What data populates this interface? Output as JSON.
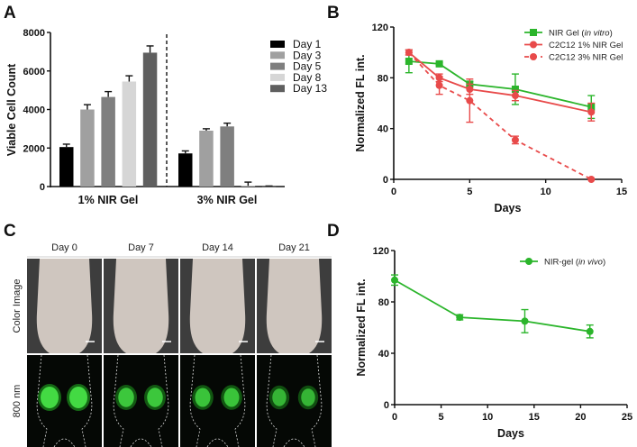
{
  "panel_labels": {
    "a": "A",
    "b": "B",
    "c": "C",
    "d": "D"
  },
  "colors": {
    "green": "#2bb52b",
    "red": "#e84a4a",
    "bars": [
      "#000000",
      "#a0a0a0",
      "#7f7f7f",
      "#d6d6d6",
      "#5f5f5f"
    ]
  },
  "chart_data": [
    {
      "id": "A",
      "type": "bar",
      "ylabel": "Viable Cell Count",
      "xlabel": "",
      "ylim": [
        0,
        8000
      ],
      "yticks": [
        "0",
        "2000",
        "4000",
        "6000",
        "8000"
      ],
      "groups": [
        "1% NIR Gel",
        "3% NIR Gel"
      ],
      "legend_placement": "right",
      "series": [
        {
          "name": "Day 1",
          "values": [
            2050,
            1720
          ],
          "errors": [
            150,
            130
          ]
        },
        {
          "name": "Day 3",
          "values": [
            4000,
            2900
          ],
          "errors": [
            250,
            100
          ]
        },
        {
          "name": "Day 5",
          "values": [
            4650,
            3120
          ],
          "errors": [
            280,
            170
          ]
        },
        {
          "name": "Day 8",
          "values": [
            5450,
            30
          ],
          "errors": [
            300,
            200
          ]
        },
        {
          "name": "Day 13",
          "values": [
            6950,
            10
          ],
          "errors": [
            350,
            20
          ]
        }
      ]
    },
    {
      "id": "B",
      "type": "line",
      "xlabel": "Days",
      "ylabel": "Normalized FL int.",
      "xlim": [
        0,
        15
      ],
      "ylim": [
        0,
        120
      ],
      "xticks": [
        "0",
        "5",
        "10",
        "15"
      ],
      "yticks": [
        "0",
        "40",
        "80",
        "120"
      ],
      "legend_placement": "top-right",
      "series": [
        {
          "name": "NIR Gel (",
          "name_italic": "in vitro",
          "name_end": ")",
          "marker": "square",
          "style": "solid",
          "color": "#2bb52b",
          "x": [
            1,
            3,
            5,
            8,
            13
          ],
          "y": [
            93,
            91,
            75,
            71,
            57
          ],
          "err": [
            9,
            1,
            2,
            12,
            9
          ]
        },
        {
          "name": "C2C12 1% NIR Gel",
          "marker": "circle",
          "style": "solid",
          "color": "#e84a4a",
          "x": [
            1,
            3,
            5,
            8,
            13
          ],
          "y": [
            100,
            80,
            71,
            66,
            53
          ],
          "err": [
            2,
            3,
            4,
            4,
            7
          ]
        },
        {
          "name": "C2C12 3% NIR Gel",
          "marker": "circle",
          "style": "dashed",
          "color": "#e84a4a",
          "x": [
            1,
            3,
            5,
            8,
            13
          ],
          "y": [
            100,
            74,
            62,
            31,
            0
          ],
          "err": [
            2,
            7,
            17,
            3,
            0
          ]
        }
      ]
    },
    {
      "id": "D",
      "type": "line",
      "xlabel": "Days",
      "ylabel": "Normalized FL int.",
      "xlim": [
        0,
        25
      ],
      "ylim": [
        0,
        120
      ],
      "xticks": [
        "0",
        "5",
        "10",
        "15",
        "20",
        "25"
      ],
      "yticks": [
        "0",
        "40",
        "80",
        "120"
      ],
      "legend_placement": "top-right",
      "series": [
        {
          "name": "NIR-gel (",
          "name_italic": "in vivo",
          "name_end": ")",
          "marker": "circle",
          "style": "solid",
          "color": "#2bb52b",
          "x": [
            0,
            7,
            14,
            21
          ],
          "y": [
            97,
            68,
            65,
            57
          ],
          "err": [
            4,
            2,
            9,
            5
          ]
        }
      ]
    }
  ],
  "panel_c": {
    "columns": [
      "Day 0",
      "Day 7",
      "Day 14",
      "Day 21"
    ],
    "rows": [
      "Color Image",
      "800 nm"
    ],
    "fluorescence_intensity": [
      1.0,
      0.75,
      0.7,
      0.55
    ]
  }
}
